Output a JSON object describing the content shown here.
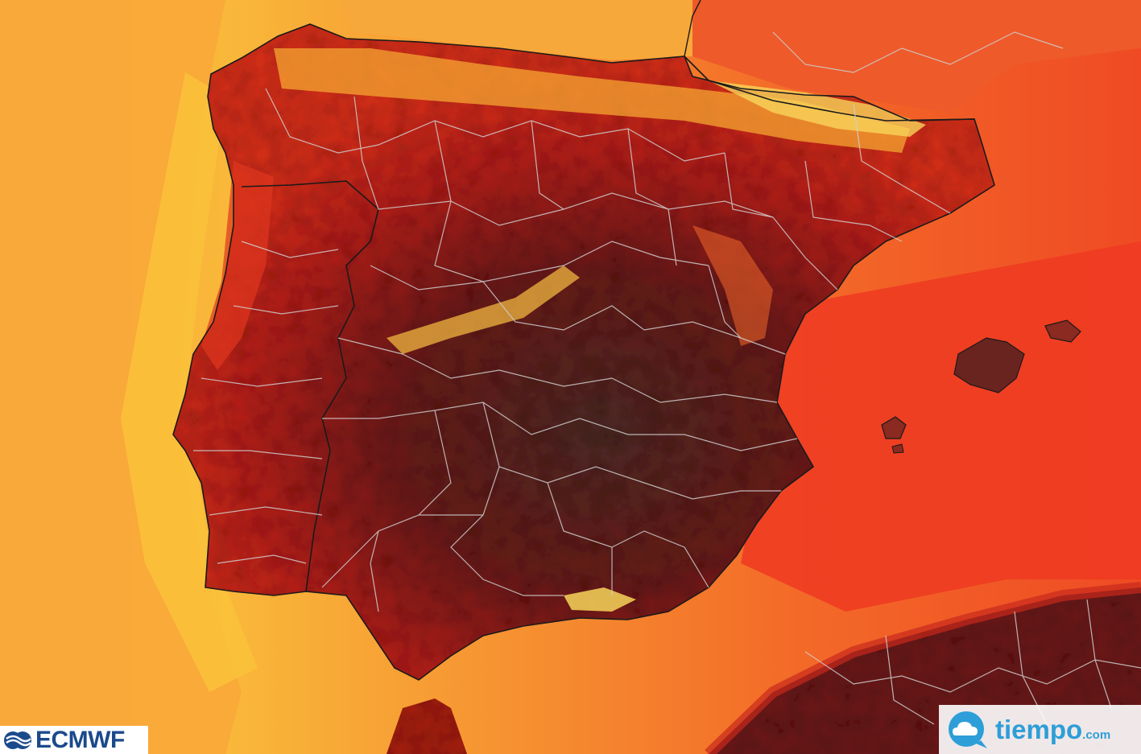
{
  "map": {
    "region": "Iberian Peninsula",
    "layer": "temperature-heat-map",
    "colors": {
      "sea_cool": "#f8b03a",
      "sea_mid": "#f57a2a",
      "sea_warm": "#ee3a22",
      "land_hot": "#c8201a",
      "land_very_hot": "#7a1a18",
      "land_extreme": "#4a2a28",
      "mountains_cool": "#f6d75a",
      "borders": "#c8c8c8",
      "coastline": "#1a1a1a"
    }
  },
  "logos": {
    "left": {
      "name": "ecmwf-logo",
      "text": "ECMWF",
      "icon": "ecmwf-waves-icon",
      "color": "#1b4a8c"
    },
    "right": {
      "name": "tiempo-logo",
      "text": "tiempo",
      "suffix": ".com",
      "icon": "cloud-bubble-icon",
      "color": "#2d9ed8"
    }
  }
}
